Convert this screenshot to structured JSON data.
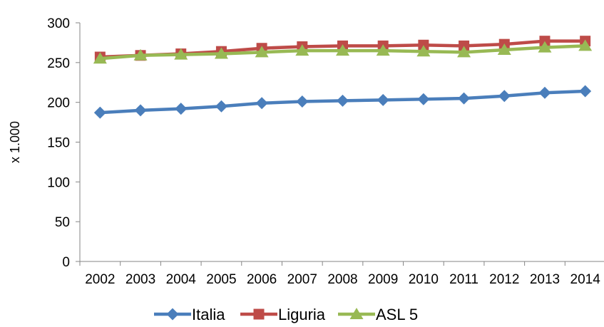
{
  "chart_data": {
    "type": "line",
    "title": "",
    "xlabel": "",
    "ylabel": "x 1.000",
    "categories": [
      "2002",
      "2003",
      "2004",
      "2005",
      "2006",
      "2007",
      "2008",
      "2009",
      "2010",
      "2011",
      "2012",
      "2013",
      "2014"
    ],
    "ylim": [
      0,
      300
    ],
    "yticks": [
      0,
      50,
      100,
      150,
      200,
      250,
      300
    ],
    "grid": false,
    "legend_position": "bottom",
    "series": [
      {
        "name": "Italia",
        "color": "#4a7ebb",
        "marker": "diamond",
        "values": [
          187,
          190,
          192,
          195,
          199,
          201,
          202,
          203,
          204,
          205,
          208,
          212,
          214
        ]
      },
      {
        "name": "Liguria",
        "color": "#be4b48",
        "marker": "square",
        "values": [
          257,
          259,
          261,
          264,
          268,
          270,
          271,
          271,
          272,
          271,
          273,
          277,
          277
        ]
      },
      {
        "name": "ASL 5",
        "color": "#98b954",
        "marker": "triangle",
        "values": [
          255,
          259,
          260,
          261,
          263,
          265,
          265,
          265,
          264,
          263,
          266,
          269,
          271
        ]
      }
    ]
  }
}
